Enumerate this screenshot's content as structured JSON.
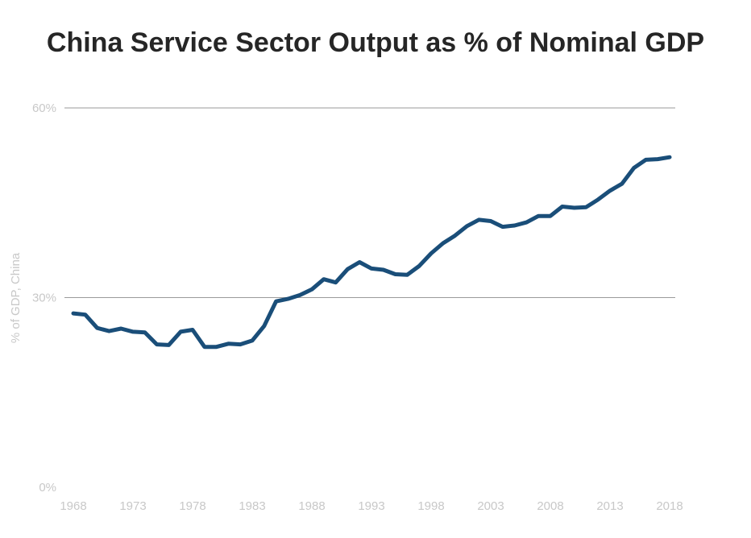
{
  "chart_data": {
    "type": "line",
    "title": "China Service Sector Output as % of Nominal GDP",
    "xlabel": "",
    "ylabel": "% of GDP, China",
    "xlim": [
      1968,
      2018
    ],
    "ylim": [
      0,
      60
    ],
    "yticks": [
      "0%",
      "30%",
      "60%"
    ],
    "xticks": [
      "1968",
      "1973",
      "1978",
      "1983",
      "1988",
      "1993",
      "1998",
      "2003",
      "2008",
      "2013",
      "2018"
    ],
    "grid": "horizontal",
    "line_color": "#1a4e79",
    "series": [
      {
        "x": [
          1968,
          1969,
          1970,
          1971,
          1972,
          1973,
          1974,
          1975,
          1976,
          1977,
          1978,
          1979,
          1980,
          1981,
          1982,
          1983,
          1984,
          1985,
          1986,
          1987,
          1988,
          1989,
          1990,
          1991,
          1992,
          1993,
          1994,
          1995,
          1996,
          1997,
          1998,
          1999,
          2000,
          2001,
          2002,
          2003,
          2004,
          2005,
          2006,
          2007,
          2008,
          2009,
          2010,
          2011,
          2012,
          2013,
          2014,
          2015,
          2016,
          2017,
          2018
        ],
        "values": [
          27.5,
          27.3,
          25.2,
          24.7,
          25.1,
          24.6,
          24.5,
          22.6,
          22.5,
          24.6,
          24.9,
          22.2,
          22.2,
          22.7,
          22.6,
          23.2,
          25.5,
          29.4,
          29.8,
          30.4,
          31.3,
          32.9,
          32.4,
          34.5,
          35.6,
          34.6,
          34.4,
          33.7,
          33.6,
          35.0,
          37.0,
          38.6,
          39.8,
          41.3,
          42.3,
          42.1,
          41.2,
          41.4,
          41.9,
          42.9,
          42.9,
          44.4,
          44.2,
          44.3,
          45.5,
          46.9,
          48.0,
          50.5,
          51.8,
          51.9,
          52.2
        ]
      }
    ]
  }
}
